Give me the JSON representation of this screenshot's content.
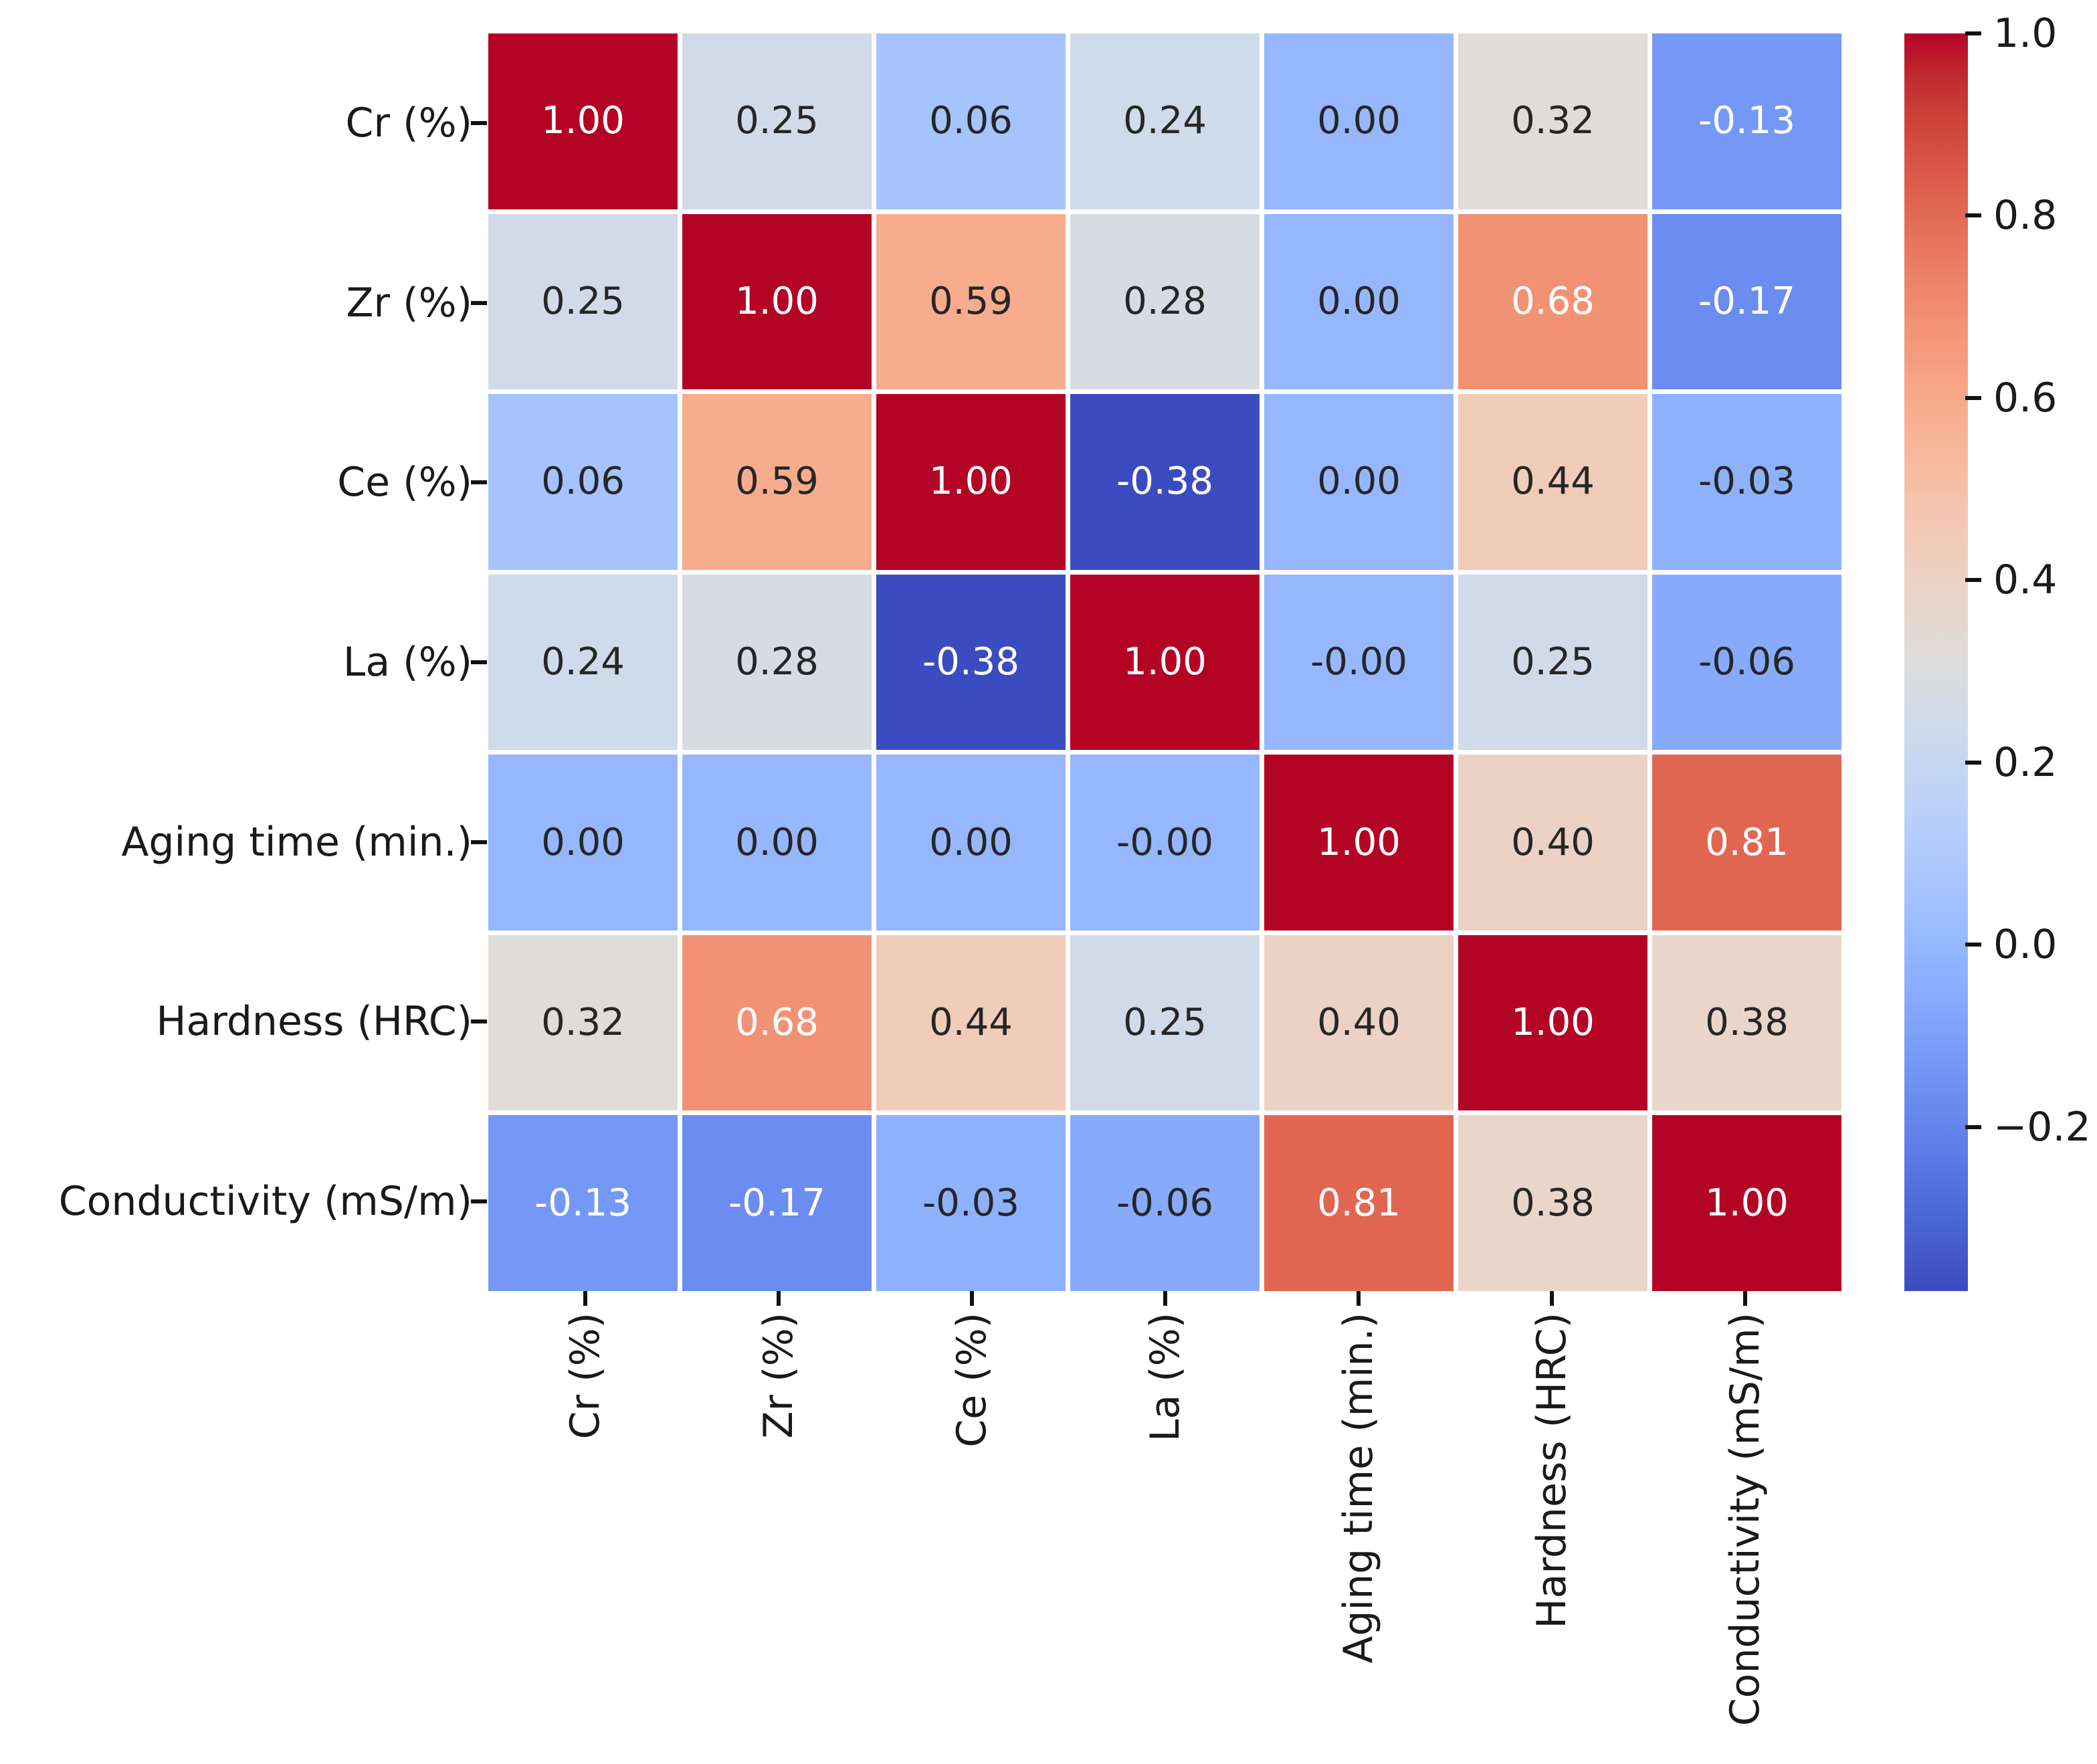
{
  "chart_data": {
    "type": "heatmap",
    "title": "",
    "variables": [
      "Cr (%)",
      "Zr (%)",
      "Ce (%)",
      "La (%)",
      "Aging time (min.)",
      "Hardness (HRC)",
      "Conductivity (mS/m)"
    ],
    "matrix": [
      [
        1.0,
        0.25,
        0.06,
        0.24,
        0.0,
        0.32,
        -0.13
      ],
      [
        0.25,
        1.0,
        0.59,
        0.28,
        0.0,
        0.68,
        -0.17
      ],
      [
        0.06,
        0.59,
        1.0,
        -0.38,
        0.0,
        0.44,
        -0.03
      ],
      [
        0.24,
        0.28,
        -0.38,
        1.0,
        -0.0,
        0.25,
        -0.06
      ],
      [
        0.0,
        0.0,
        0.0,
        -0.0,
        1.0,
        0.4,
        0.81
      ],
      [
        0.32,
        0.68,
        0.44,
        0.25,
        0.4,
        1.0,
        0.38
      ],
      [
        -0.13,
        -0.17,
        -0.03,
        -0.06,
        0.81,
        0.38,
        1.0
      ]
    ],
    "annotations": [
      [
        "1.00",
        "0.25",
        "0.06",
        "0.24",
        "0.00",
        "0.32",
        "-0.13"
      ],
      [
        "0.25",
        "1.00",
        "0.59",
        "0.28",
        "0.00",
        "0.68",
        "-0.17"
      ],
      [
        "0.06",
        "0.59",
        "1.00",
        "-0.38",
        "0.00",
        "0.44",
        "-0.03"
      ],
      [
        "0.24",
        "0.28",
        "-0.38",
        "1.00",
        "-0.00",
        "0.25",
        "-0.06"
      ],
      [
        "0.00",
        "0.00",
        "0.00",
        "-0.00",
        "1.00",
        "0.40",
        "0.81"
      ],
      [
        "0.32",
        "0.68",
        "0.44",
        "0.25",
        "0.40",
        "1.00",
        "0.38"
      ],
      [
        "-0.13",
        "-0.17",
        "-0.03",
        "-0.06",
        "0.81",
        "0.38",
        "1.00"
      ]
    ],
    "colormap": "coolwarm",
    "colormap_lut": [
      "#3b4cc0",
      "#445acc",
      "#4d68d7",
      "#5775e1",
      "#6282ea",
      "#6c8ef1",
      "#779af7",
      "#82a5fb",
      "#8db0fe",
      "#98b9ff",
      "#a3c2ff",
      "#aec9fd",
      "#b8d0f9",
      "#c2d5f4",
      "#ccd9ee",
      "#d5dbe6",
      "#dddddd",
      "#e5d8d1",
      "#ecd3c5",
      "#f1ccb9",
      "#f5c4ad",
      "#f7bba0",
      "#f7b194",
      "#f7a687",
      "#f49a7b",
      "#f18d6f",
      "#ec7f63",
      "#e57058",
      "#de604d",
      "#d55042",
      "#cb3e38",
      "#c0282f",
      "#b40426"
    ],
    "vmin": -0.38,
    "vmax": 1.0,
    "legend_position": "right",
    "grid": false,
    "colorbar": {
      "tick_values": [
        1.0,
        0.8,
        0.6,
        0.4,
        0.2,
        0.0,
        -0.2
      ],
      "tick_labels": [
        "1.0",
        "0.8",
        "0.6",
        "0.4",
        "0.2",
        "0.0",
        "−0.2"
      ]
    }
  },
  "colors": {
    "background": "#ffffff",
    "annotation_dark": "#262626",
    "annotation_light": "#ffffff",
    "tick": "#111111",
    "axis_label": "#1a1a1a"
  }
}
